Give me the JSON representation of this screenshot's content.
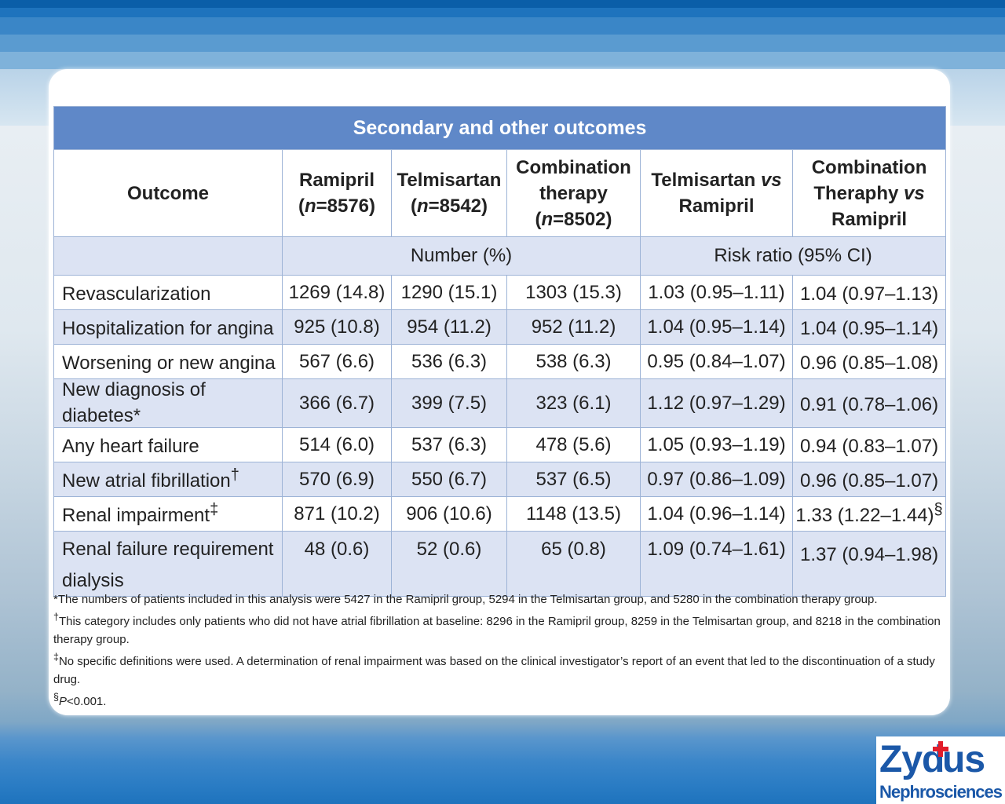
{
  "table": {
    "title": "Secondary and other outcomes",
    "headers": {
      "outcome": "Outcome",
      "ramipril": [
        "Ramipril",
        "(",
        "n",
        "=8576)"
      ],
      "telmisartan": [
        "Telmisartan",
        "(",
        "n",
        "=8542)"
      ],
      "combination": [
        "Combination",
        "therapy",
        "(",
        "n",
        "=8502)"
      ],
      "telmi_vs": [
        "Telmisartan ",
        "vs",
        "Ramipril"
      ],
      "combo_vs": [
        "Combination",
        "Theraphy ",
        "vs",
        "Ramipril"
      ]
    },
    "subheaders": {
      "number": "Number (%)",
      "risk": "Risk ratio (95% CI)"
    },
    "rows": [
      {
        "label": "Revascularization",
        "sup": "",
        "ramipril": "1269 (14.8)",
        "telmisartan": "1290 (15.1)",
        "combination": "1303 (15.3)",
        "telmi_vs": "1.03 (0.95–1.11)",
        "combo_vs": "1.04 (0.97–1.13)",
        "combo_sup": ""
      },
      {
        "label": "Hospitalization for angina",
        "sup": "",
        "ramipril": "925 (10.8)",
        "telmisartan": "954 (11.2)",
        "combination": "952 (11.2)",
        "telmi_vs": "1.04 (0.95–1.14)",
        "combo_vs": "1.04 (0.95–1.14)",
        "combo_sup": ""
      },
      {
        "label": "Worsening or new angina",
        "sup": "",
        "ramipril": "567 (6.6)",
        "telmisartan": "536 (6.3)",
        "combination": "538 (6.3)",
        "telmi_vs": "0.95 (0.84–1.07)",
        "combo_vs": "0.96 (0.85–1.08)",
        "combo_sup": ""
      },
      {
        "label": "New diagnosis of diabetes*",
        "sup": "",
        "ramipril": "366 (6.7)",
        "telmisartan": "399 (7.5)",
        "combination": "323 (6.1)",
        "telmi_vs": "1.12 (0.97–1.29)",
        "combo_vs": "0.91 (0.78–1.06)",
        "combo_sup": ""
      },
      {
        "label": "Any heart failure",
        "sup": "",
        "ramipril": "514 (6.0)",
        "telmisartan": "537 (6.3)",
        "combination": "478 (5.6)",
        "telmi_vs": "1.05 (0.93–1.19)",
        "combo_vs": "0.94 (0.83–1.07)",
        "combo_sup": ""
      },
      {
        "label": "New atrial fibrillation",
        "sup": "†",
        "ramipril": "570 (6.9)",
        "telmisartan": "550 (6.7)",
        "combination": "537 (6.5)",
        "telmi_vs": "0.97 (0.86–1.09)",
        "combo_vs": "0.96 (0.85–1.07)",
        "combo_sup": ""
      },
      {
        "label": "Renal impairment",
        "sup": "‡",
        "ramipril": "871 (10.2)",
        "telmisartan": "906 (10.6)",
        "combination": "1148 (13.5)",
        "telmi_vs": "1.04 (0.96–1.14)",
        "combo_vs": "1.33 (1.22–1.44)",
        "combo_sup": "§"
      },
      {
        "label": "Renal failure requirement dialysis",
        "sup": "",
        "ramipril": "48 (0.6)",
        "telmisartan": "52 (0.6)",
        "combination": "65 (0.8)",
        "telmi_vs": "1.09 (0.74–1.61)",
        "combo_vs": "1.37 (0.94–1.98)",
        "combo_sup": ""
      }
    ]
  },
  "footnotes": [
    {
      "mark": "*",
      "text": "The numbers of patients included in this analysis were 5427 in the Ramipril group, 5294 in the Telmisartan group, and 5280 in the combination therapy group."
    },
    {
      "mark": "†",
      "text": "This category includes only patients who did not have atrial fibrillation at baseline: 8296 in the Ramipril group, 8259 in the Telmisartan group, and 8218 in the combination therapy group."
    },
    {
      "mark": "‡",
      "text": "No specific definitions were used. A determination of renal impairment was based on the clinical investigator’s report of an event that led to the discontinuation of a study drug."
    },
    {
      "mark": "§",
      "italic": "P",
      "text": "<0.001."
    }
  ],
  "logo": {
    "word_start": "Zy",
    "word_end": "us",
    "subtitle": "Nephrosciences",
    "brand_color": "#1b58a8",
    "accent_color": "#e21d2a"
  }
}
